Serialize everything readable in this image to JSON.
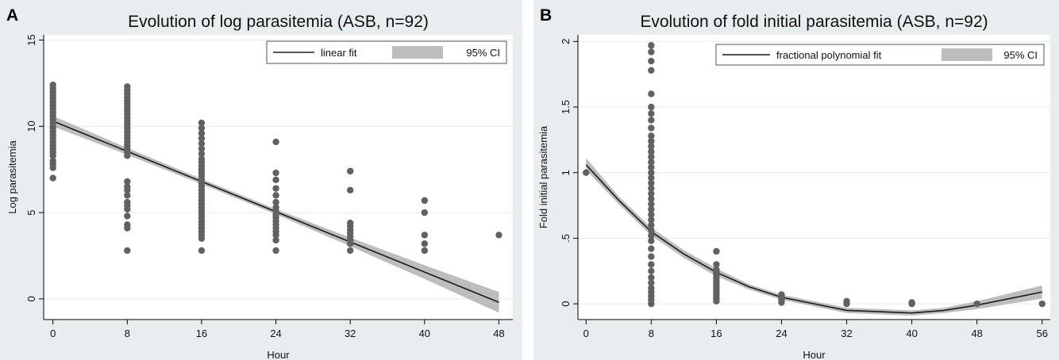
{
  "chart_data": [
    {
      "type": "scatter",
      "panel_label": "A",
      "title": "Evolution of log parasitemia (ASB, n=92)",
      "xlabel": "Hour",
      "ylabel": "Log parasitemia",
      "xlim": [
        -1,
        49.5
      ],
      "ylim": [
        -1.2,
        15.3
      ],
      "xticks": [
        0,
        8,
        16,
        24,
        32,
        40,
        48
      ],
      "xtick_labels": [
        "0",
        "8",
        "16",
        "24",
        "32",
        "40",
        "48"
      ],
      "yticks": [
        0,
        5,
        10,
        15
      ],
      "ytick_labels": [
        "0",
        "5",
        "10",
        "15"
      ],
      "grid": true,
      "legend_position": "top-right",
      "legend": [
        {
          "label": "linear fit",
          "kind": "line"
        },
        {
          "label": "95% CI",
          "kind": "band"
        }
      ],
      "series": [
        {
          "kind": "points",
          "points": [
            [
              0,
              7.0
            ],
            [
              0,
              7.6
            ],
            [
              0,
              7.8
            ],
            [
              0,
              8.0
            ],
            [
              0,
              8.3
            ],
            [
              0,
              8.5
            ],
            [
              0,
              8.7
            ],
            [
              0,
              8.9
            ],
            [
              0,
              9.1
            ],
            [
              0,
              9.3
            ],
            [
              0,
              9.5
            ],
            [
              0,
              9.7
            ],
            [
              0,
              9.9
            ],
            [
              0,
              10.0
            ],
            [
              0,
              10.2
            ],
            [
              0,
              10.4
            ],
            [
              0,
              10.6
            ],
            [
              0,
              10.8
            ],
            [
              0,
              11.0
            ],
            [
              0,
              11.2
            ],
            [
              0,
              11.4
            ],
            [
              0,
              11.6
            ],
            [
              0,
              11.8
            ],
            [
              0,
              12.0
            ],
            [
              0,
              12.2
            ],
            [
              0,
              12.4
            ],
            [
              8,
              2.8
            ],
            [
              8,
              4.1
            ],
            [
              8,
              4.3
            ],
            [
              8,
              4.8
            ],
            [
              8,
              5.2
            ],
            [
              8,
              5.4
            ],
            [
              8,
              5.6
            ],
            [
              8,
              6.0
            ],
            [
              8,
              6.3
            ],
            [
              8,
              6.5
            ],
            [
              8,
              6.8
            ],
            [
              8,
              8.3
            ],
            [
              8,
              8.5
            ],
            [
              8,
              8.7
            ],
            [
              8,
              8.9
            ],
            [
              8,
              9.1
            ],
            [
              8,
              9.3
            ],
            [
              8,
              9.5
            ],
            [
              8,
              9.7
            ],
            [
              8,
              9.9
            ],
            [
              8,
              10.1
            ],
            [
              8,
              10.3
            ],
            [
              8,
              10.5
            ],
            [
              8,
              10.7
            ],
            [
              8,
              10.9
            ],
            [
              8,
              11.1
            ],
            [
              8,
              11.3
            ],
            [
              8,
              11.5
            ],
            [
              8,
              11.7
            ],
            [
              8,
              11.9
            ],
            [
              8,
              12.1
            ],
            [
              8,
              12.3
            ],
            [
              16,
              2.8
            ],
            [
              16,
              3.5
            ],
            [
              16,
              3.7
            ],
            [
              16,
              3.9
            ],
            [
              16,
              4.1
            ],
            [
              16,
              4.3
            ],
            [
              16,
              4.5
            ],
            [
              16,
              4.7
            ],
            [
              16,
              4.9
            ],
            [
              16,
              5.1
            ],
            [
              16,
              5.3
            ],
            [
              16,
              5.5
            ],
            [
              16,
              5.7
            ],
            [
              16,
              5.9
            ],
            [
              16,
              6.1
            ],
            [
              16,
              6.3
            ],
            [
              16,
              6.5
            ],
            [
              16,
              6.7
            ],
            [
              16,
              6.9
            ],
            [
              16,
              7.1
            ],
            [
              16,
              7.3
            ],
            [
              16,
              7.5
            ],
            [
              16,
              7.7
            ],
            [
              16,
              7.9
            ],
            [
              16,
              8.1
            ],
            [
              16,
              8.4
            ],
            [
              16,
              8.7
            ],
            [
              16,
              9.0
            ],
            [
              16,
              9.3
            ],
            [
              16,
              9.6
            ],
            [
              16,
              9.9
            ],
            [
              16,
              10.2
            ],
            [
              24,
              2.8
            ],
            [
              24,
              3.4
            ],
            [
              24,
              3.7
            ],
            [
              24,
              3.9
            ],
            [
              24,
              4.1
            ],
            [
              24,
              4.3
            ],
            [
              24,
              4.5
            ],
            [
              24,
              4.7
            ],
            [
              24,
              4.9
            ],
            [
              24,
              5.1
            ],
            [
              24,
              5.3
            ],
            [
              24,
              5.6
            ],
            [
              24,
              6.0
            ],
            [
              24,
              6.4
            ],
            [
              24,
              6.9
            ],
            [
              24,
              7.3
            ],
            [
              24,
              9.1
            ],
            [
              32,
              2.8
            ],
            [
              32,
              3.2
            ],
            [
              32,
              3.4
            ],
            [
              32,
              3.6
            ],
            [
              32,
              3.8
            ],
            [
              32,
              4.0
            ],
            [
              32,
              4.2
            ],
            [
              32,
              4.4
            ],
            [
              32,
              6.3
            ],
            [
              32,
              7.4
            ],
            [
              40,
              2.8
            ],
            [
              40,
              3.2
            ],
            [
              40,
              3.7
            ],
            [
              40,
              5.0
            ],
            [
              40,
              5.7
            ],
            [
              48,
              3.7
            ]
          ]
        },
        {
          "kind": "fit",
          "name": "linear fit",
          "x": [
            0,
            8,
            16,
            24,
            32,
            40,
            48
          ],
          "y": [
            10.3,
            8.55,
            6.8,
            5.05,
            3.3,
            1.55,
            -0.2
          ],
          "ci_lower": [
            10.0,
            8.35,
            6.65,
            4.9,
            3.05,
            1.15,
            -0.8
          ],
          "ci_upper": [
            10.6,
            8.75,
            6.95,
            5.2,
            3.55,
            1.95,
            0.4
          ]
        }
      ]
    },
    {
      "type": "scatter",
      "panel_label": "B",
      "title": "Evolution of fold initial parasitemia (ASB, n=92)",
      "xlabel": "Hour",
      "ylabel": "Fold initial parasitemia",
      "xlim": [
        -1,
        57
      ],
      "ylim": [
        -0.12,
        2.05
      ],
      "xticks": [
        0,
        8,
        16,
        24,
        32,
        40,
        48,
        56
      ],
      "xtick_labels": [
        "0",
        "8",
        "16",
        "24",
        "32",
        "40",
        "48",
        "56"
      ],
      "yticks": [
        0,
        0.5,
        1,
        1.5,
        2
      ],
      "ytick_labels": [
        "0",
        ".5",
        "1",
        "1.5",
        "2"
      ],
      "grid": true,
      "legend_position": "top-right",
      "legend": [
        {
          "label": "fractional polynomial fit",
          "kind": "line"
        },
        {
          "label": "95% CI",
          "kind": "band"
        }
      ],
      "series": [
        {
          "kind": "points",
          "points": [
            [
              0,
              1.0
            ],
            [
              8,
              0.0
            ],
            [
              8,
              0.03
            ],
            [
              8,
              0.06
            ],
            [
              8,
              0.09
            ],
            [
              8,
              0.12
            ],
            [
              8,
              0.16
            ],
            [
              8,
              0.2
            ],
            [
              8,
              0.25
            ],
            [
              8,
              0.3
            ],
            [
              8,
              0.36
            ],
            [
              8,
              0.42
            ],
            [
              8,
              0.48
            ],
            [
              8,
              0.52
            ],
            [
              8,
              0.56
            ],
            [
              8,
              0.6
            ],
            [
              8,
              0.64
            ],
            [
              8,
              0.68
            ],
            [
              8,
              0.72
            ],
            [
              8,
              0.76
            ],
            [
              8,
              0.8
            ],
            [
              8,
              0.84
            ],
            [
              8,
              0.88
            ],
            [
              8,
              0.92
            ],
            [
              8,
              0.96
            ],
            [
              8,
              1.0
            ],
            [
              8,
              1.04
            ],
            [
              8,
              1.08
            ],
            [
              8,
              1.12
            ],
            [
              8,
              1.16
            ],
            [
              8,
              1.2
            ],
            [
              8,
              1.24
            ],
            [
              8,
              1.28
            ],
            [
              8,
              1.34
            ],
            [
              8,
              1.4
            ],
            [
              8,
              1.45
            ],
            [
              8,
              1.5
            ],
            [
              8,
              1.6
            ],
            [
              8,
              1.78
            ],
            [
              8,
              1.85
            ],
            [
              8,
              1.92
            ],
            [
              8,
              1.97
            ],
            [
              16,
              0.02
            ],
            [
              16,
              0.04
            ],
            [
              16,
              0.06
            ],
            [
              16,
              0.08
            ],
            [
              16,
              0.1
            ],
            [
              16,
              0.12
            ],
            [
              16,
              0.14
            ],
            [
              16,
              0.16
            ],
            [
              16,
              0.18
            ],
            [
              16,
              0.2
            ],
            [
              16,
              0.22
            ],
            [
              16,
              0.24
            ],
            [
              16,
              0.26
            ],
            [
              16,
              0.3
            ],
            [
              16,
              0.4
            ],
            [
              24,
              0.01
            ],
            [
              24,
              0.03
            ],
            [
              24,
              0.05
            ],
            [
              24,
              0.07
            ],
            [
              32,
              0.0
            ],
            [
              32,
              0.02
            ],
            [
              40,
              0.0
            ],
            [
              40,
              0.01
            ],
            [
              48,
              0.0
            ],
            [
              56,
              0.0
            ]
          ]
        },
        {
          "kind": "fit",
          "name": "fractional polynomial fit",
          "x": [
            0,
            4,
            8,
            12,
            16,
            20,
            24,
            28,
            32,
            36,
            40,
            44,
            48,
            52,
            56
          ],
          "y": [
            1.06,
            0.79,
            0.55,
            0.38,
            0.24,
            0.13,
            0.05,
            0.0,
            -0.05,
            -0.06,
            -0.07,
            -0.05,
            -0.01,
            0.04,
            0.09
          ],
          "ci_lower": [
            1.02,
            0.76,
            0.52,
            0.35,
            0.21,
            0.11,
            0.03,
            -0.02,
            -0.07,
            -0.08,
            -0.09,
            -0.07,
            -0.04,
            0.0,
            0.04
          ],
          "ci_upper": [
            1.11,
            0.82,
            0.58,
            0.41,
            0.27,
            0.15,
            0.07,
            0.02,
            -0.03,
            -0.04,
            -0.05,
            -0.03,
            0.02,
            0.08,
            0.14
          ]
        }
      ]
    }
  ]
}
